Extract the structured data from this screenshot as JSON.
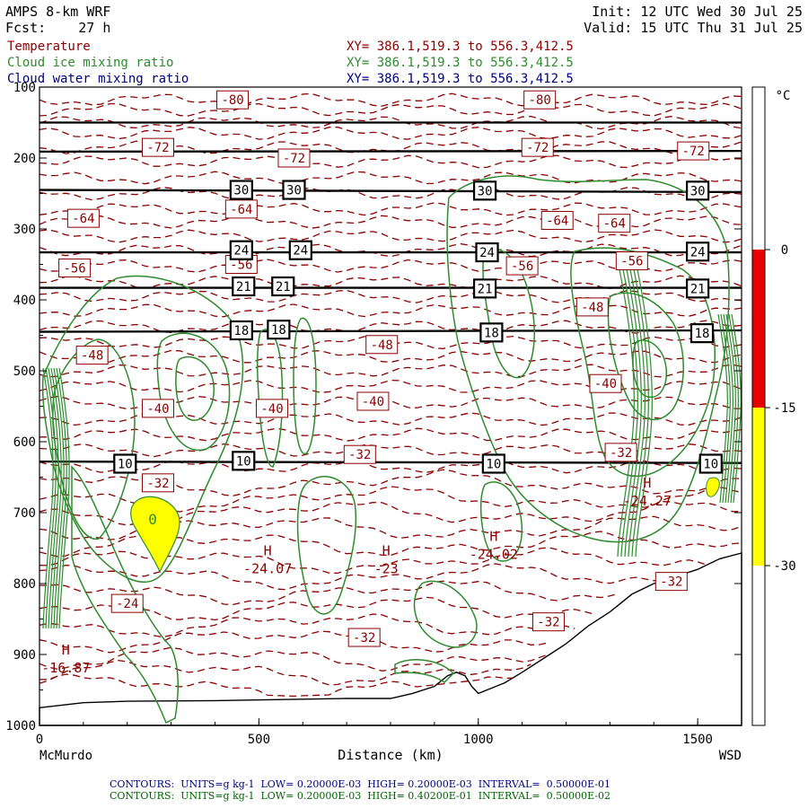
{
  "header": {
    "model": "AMPS 8-km WRF",
    "fcst_label": "Fcst:",
    "fcst_value": "27 h",
    "init": "Init: 12 UTC Wed 30 Jul 25",
    "valid": "Valid: 15 UTC Thu 31 Jul 25",
    "fields": [
      {
        "name": "Temperature",
        "xy": "XY= 386.1,519.3 to 556.3,412.5",
        "color": "#8b0000"
      },
      {
        "name": "Cloud ice mixing ratio",
        "xy": "XY= 386.1,519.3 to 556.3,412.5",
        "color": "#2e8b2e"
      },
      {
        "name": "Cloud water mixing ratio",
        "xy": "XY= 386.1,519.3 to 556.3,412.5",
        "color": "#000080"
      }
    ]
  },
  "footer": {
    "lines": [
      "CONTOURS:  UNITS=g kg-1  LOW= 0.20000E-03  HIGH= 0.20000E-03  INTERVAL=  0.50000E-01",
      "CONTOURS:  UNITS=g kg-1  LOW= 0.20000E-03  HIGH= 0.40200E-01  INTERVAL=  0.50000E-02"
    ],
    "colors": [
      "#000080",
      "#006400"
    ]
  },
  "colorbar": {
    "unit": "°C",
    "ticks": [
      "0",
      "-15",
      "-30"
    ],
    "segments": [
      {
        "from": 0,
        "to": -15,
        "color": "#e60000"
      },
      {
        "from": -15,
        "to": -30,
        "color": "#ffff00"
      }
    ]
  },
  "chart_data": {
    "type": "cross-section contour",
    "xlabel": "Distance (km)",
    "x_endpoints": [
      "McMurdo",
      "WSD"
    ],
    "xlim": [
      0,
      1600
    ],
    "ylim": [
      1000,
      100
    ],
    "x_ticks": [
      "0",
      "500",
      "1000",
      "1500"
    ],
    "y_ticks": [
      "100",
      "200",
      "300",
      "400",
      "500",
      "600",
      "700",
      "800",
      "900",
      "1000"
    ],
    "grid": false,
    "temperature_labels": [
      {
        "text": "-80",
        "x": 440,
        "y": 118
      },
      {
        "text": "-80",
        "x": 1140,
        "y": 118
      },
      {
        "text": "-72",
        "x": 270,
        "y": 185
      },
      {
        "text": "-72",
        "x": 1135,
        "y": 185
      },
      {
        "text": "-72",
        "x": 1490,
        "y": 190
      },
      {
        "text": "-72",
        "x": 580,
        "y": 200
      },
      {
        "text": "-64",
        "x": 100,
        "y": 285
      },
      {
        "text": "-64",
        "x": 460,
        "y": 272
      },
      {
        "text": "-64",
        "x": 1180,
        "y": 288
      },
      {
        "text": "-64",
        "x": 1310,
        "y": 292
      },
      {
        "text": "-56",
        "x": 80,
        "y": 355
      },
      {
        "text": "-56",
        "x": 460,
        "y": 350
      },
      {
        "text": "-56",
        "x": 1100,
        "y": 352
      },
      {
        "text": "-56",
        "x": 1350,
        "y": 345
      },
      {
        "text": "-48",
        "x": 1260,
        "y": 410
      },
      {
        "text": "-48",
        "x": 780,
        "y": 463
      },
      {
        "text": "-48",
        "x": 120,
        "y": 478
      },
      {
        "text": "-40",
        "x": 1290,
        "y": 518
      },
      {
        "text": "-40",
        "x": 760,
        "y": 543
      },
      {
        "text": "-40",
        "x": 530,
        "y": 553
      },
      {
        "text": "-40",
        "x": 270,
        "y": 553
      },
      {
        "text": "-32",
        "x": 730,
        "y": 618
      },
      {
        "text": "-32",
        "x": 1325,
        "y": 615
      },
      {
        "text": "-32",
        "x": 270,
        "y": 658
      },
      {
        "text": "-32",
        "x": 1440,
        "y": 797
      },
      {
        "text": "-32",
        "x": 1160,
        "y": 854
      },
      {
        "text": "-32",
        "x": 740,
        "y": 876
      },
      {
        "text": "-24",
        "x": 200,
        "y": 828
      }
    ],
    "isotherm_boxes": [
      {
        "text": "30",
        "x": 460,
        "y": 245
      },
      {
        "text": "30",
        "x": 580,
        "y": 245
      },
      {
        "text": "30",
        "x": 1015,
        "y": 246
      },
      {
        "text": "30",
        "x": 1500,
        "y": 246
      },
      {
        "text": "24",
        "x": 460,
        "y": 330
      },
      {
        "text": "24",
        "x": 595,
        "y": 330
      },
      {
        "text": "24",
        "x": 1020,
        "y": 333
      },
      {
        "text": "24",
        "x": 1500,
        "y": 332
      },
      {
        "text": "21",
        "x": 465,
        "y": 381
      },
      {
        "text": "21",
        "x": 555,
        "y": 381
      },
      {
        "text": "21",
        "x": 1015,
        "y": 384
      },
      {
        "text": "21",
        "x": 1500,
        "y": 384
      },
      {
        "text": "18",
        "x": 460,
        "y": 443
      },
      {
        "text": "18",
        "x": 545,
        "y": 442
      },
      {
        "text": "18",
        "x": 1030,
        "y": 446
      },
      {
        "text": "18",
        "x": 1510,
        "y": 447
      },
      {
        "text": "10",
        "x": 195,
        "y": 631
      },
      {
        "text": "10",
        "x": 465,
        "y": 627
      },
      {
        "text": "10",
        "x": 1035,
        "y": 631
      },
      {
        "text": "10",
        "x": 1530,
        "y": 631
      }
    ],
    "highs": [
      {
        "mark": "H",
        "value": "-16.87",
        "x": 60,
        "y": 915
      },
      {
        "mark": "H",
        "value": "-24.07",
        "x": 520,
        "y": 775
      },
      {
        "mark": "H",
        "value": "-23",
        "x": 790,
        "y": 775
      },
      {
        "mark": "H",
        "value": "-24.02",
        "x": 1035,
        "y": 755
      },
      {
        "mark": "H",
        "value": "-24.27",
        "x": 1385,
        "y": 680
      }
    ],
    "cloud_water_label": {
      "text": "0",
      "x": 258,
      "y": 709
    }
  }
}
